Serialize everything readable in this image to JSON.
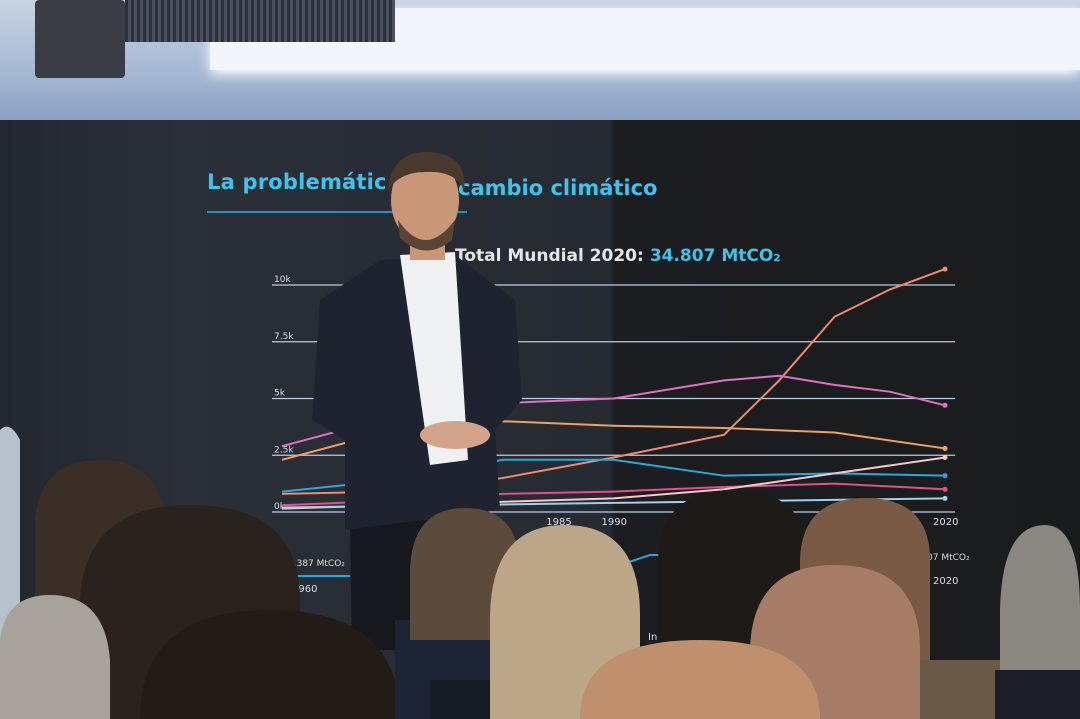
{
  "slide": {
    "title_left": "La problemátic",
    "title_right": "cambio climático",
    "total_label": "Total Mundial 2020:",
    "total_value": "34.807 MtCO₂",
    "inset_left_value": "9.387 MtCO₂",
    "inset_left_year": "1960",
    "inset_right_value": "07 MtCO₂",
    "inset_right_year": "2020",
    "legend_item": "India"
  },
  "chart_data": {
    "type": "line",
    "title": "",
    "y_ticks": [
      "10k",
      "7.5k",
      "5k",
      "2.5k",
      "0k"
    ],
    "x_ticks": [
      "1985",
      "1990",
      "2020"
    ],
    "ylim": [
      0,
      10000
    ],
    "xlim": [
      1960,
      2020
    ],
    "grid": true,
    "series": [
      {
        "color": "#f08a6a",
        "x": [
          1960,
          1970,
          1980,
          1990,
          2000,
          2005,
          2010,
          2015,
          2020
        ],
        "y": [
          800,
          900,
          1500,
          2400,
          3400,
          5800,
          8600,
          9800,
          10700
        ]
      },
      {
        "color": "#e070c0",
        "x": [
          1960,
          1970,
          1980,
          1990,
          2000,
          2005,
          2010,
          2015,
          2020
        ],
        "y": [
          2900,
          4200,
          4800,
          5000,
          5800,
          6000,
          5600,
          5300,
          4700
        ]
      },
      {
        "color": "#f0a060",
        "x": [
          1960,
          1970,
          1980,
          1990,
          2000,
          2010,
          2020
        ],
        "y": [
          2300,
          3600,
          4000,
          3800,
          3700,
          3500,
          2800
        ]
      },
      {
        "color": "#29a8e0",
        "x": [
          1960,
          1970,
          1980,
          1990,
          2000,
          2010,
          2020
        ],
        "y": [
          900,
          1400,
          2300,
          2300,
          1600,
          1700,
          1600
        ]
      },
      {
        "color": "#e0508a",
        "x": [
          1960,
          1970,
          1980,
          1990,
          2000,
          2010,
          2020
        ],
        "y": [
          300,
          500,
          800,
          900,
          1100,
          1250,
          1000
        ]
      },
      {
        "color": "#f5c8c8",
        "x": [
          1960,
          1990,
          2000,
          2010,
          2020
        ],
        "y": [
          150,
          600,
          1000,
          1700,
          2400
        ]
      },
      {
        "color": "#9fd0f0",
        "x": [
          1960,
          1990,
          2020
        ],
        "y": [
          200,
          400,
          600
        ]
      }
    ]
  }
}
